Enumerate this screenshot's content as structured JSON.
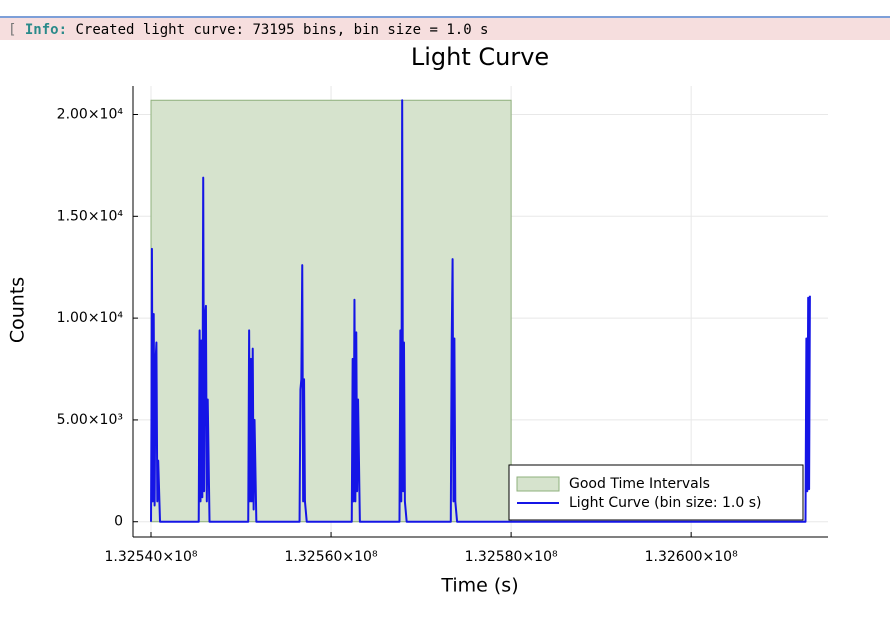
{
  "info": {
    "bracket": "[",
    "label": "Info:",
    "message": "Created light curve: 73195 bins, bin size = 1.0 s"
  },
  "chart_data": {
    "type": "line",
    "title": "Light Curve",
    "x_label": "Time (s)",
    "y_label": "Counts",
    "x": [
      132540000,
      132540050,
      132540100,
      132540200,
      132540300,
      132540400,
      132540500,
      132540600,
      132540700,
      132540800,
      132541000,
      132545300,
      132545400,
      132545500,
      132545600,
      132545700,
      132545800,
      132545900,
      132546000,
      132546100,
      132546200,
      132546300,
      132546500,
      132550800,
      132550900,
      132551000,
      132551100,
      132551200,
      132551300,
      132551400,
      132551500,
      132551700,
      132556500,
      132556600,
      132556700,
      132556800,
      132556900,
      132557000,
      132557100,
      132557300,
      132562300,
      132562400,
      132562500,
      132562600,
      132562700,
      132562800,
      132562900,
      132563000,
      132563200,
      132567600,
      132567700,
      132567800,
      132567900,
      132568000,
      132568100,
      132568200,
      132568400,
      132573300,
      132573400,
      132573500,
      132573600,
      132573700,
      132573800,
      132574000,
      132612700,
      132612800,
      132612900,
      132613000,
      132613100,
      132613190
    ],
    "series": [
      {
        "name": "Light Curve (bin size: 1.0 s)",
        "color": "#1515e6",
        "values": [
          0,
          5000,
          13400,
          1000,
          10200,
          800,
          7800,
          8800,
          1000,
          3000,
          0,
          0,
          9400,
          1000,
          8900,
          1200,
          16900,
          1500,
          10000,
          10600,
          1000,
          6000,
          0,
          0,
          9400,
          1000,
          8000,
          1000,
          8500,
          600,
          5000,
          0,
          0,
          6500,
          7000,
          12600,
          1000,
          7000,
          1000,
          0,
          0,
          8000,
          1000,
          10900,
          1000,
          9300,
          1500,
          6000,
          0,
          0,
          9400,
          1000,
          20700,
          1500,
          8800,
          1000,
          0,
          0,
          8800,
          12900,
          1000,
          9000,
          1000,
          0,
          0,
          9000,
          1500,
          11000,
          1600,
          11100
        ]
      }
    ],
    "gti": {
      "name": "Good Time Intervals",
      "color": "#d6e3cd",
      "range": [
        132540000,
        132580000
      ]
    },
    "xlim": [
      132538000,
      132615200
    ],
    "ylim": [
      -750,
      21400
    ],
    "xticks": [
      {
        "value": 132540000,
        "label": "1.32540×10⁸"
      },
      {
        "value": 132560000,
        "label": "1.32560×10⁸"
      },
      {
        "value": 132580000,
        "label": "1.32580×10⁸"
      },
      {
        "value": 132600000,
        "label": "1.32600×10⁸"
      }
    ],
    "yticks": [
      0,
      {
        "value": 5000,
        "label": "5.00×10³"
      },
      {
        "value": 10000,
        "label": "1.00×10⁴"
      },
      {
        "value": 15000,
        "label": "1.50×10⁴"
      },
      {
        "value": 20000,
        "label": "2.00×10⁴"
      }
    ],
    "grid": true,
    "legend": "lower-right"
  }
}
